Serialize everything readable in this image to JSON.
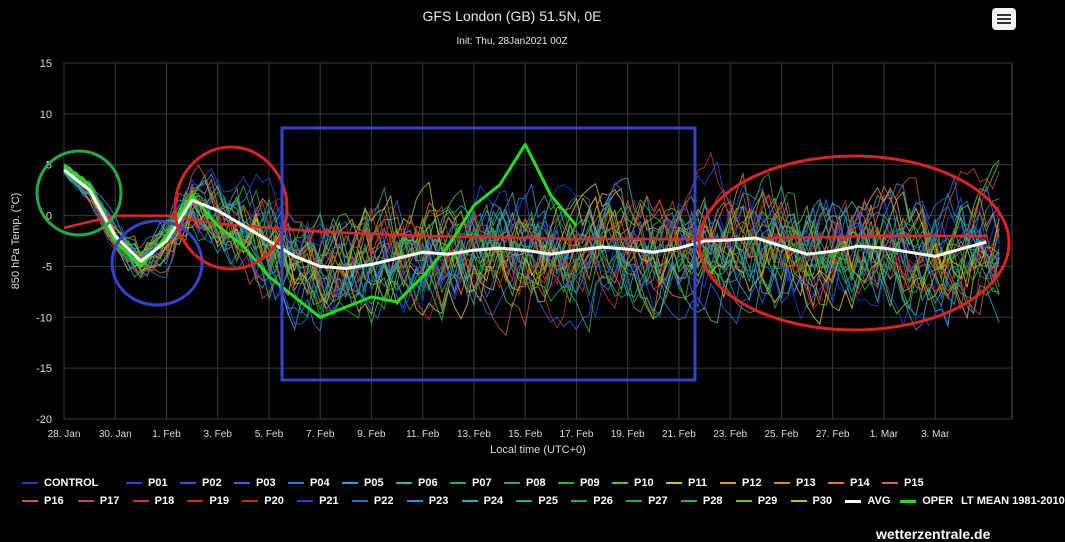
{
  "header": {
    "title": "GFS London (GB) 51.5N, 0E",
    "subtitle": "Init: Thu, 28Jan2021 00Z",
    "menu_icon": "hamburger-menu-icon"
  },
  "watermark": "wetterzentrale.de",
  "chart_data": {
    "type": "line",
    "ylabel": "850 hPa Temp. (°C)",
    "xlabel": "Local time (UTC+0)",
    "ylim": [
      -20,
      15
    ],
    "yticks": [
      15,
      10,
      5,
      0,
      -5,
      -10,
      -15,
      -20
    ],
    "x_range": [
      "2021-01-28",
      "2021-03-05"
    ],
    "xticks": [
      "28. Jan",
      "30. Jan",
      "1. Feb",
      "3. Feb",
      "5. Feb",
      "7. Feb",
      "9. Feb",
      "11. Feb",
      "13. Feb",
      "15. Feb",
      "17. Feb",
      "19. Feb",
      "21. Feb",
      "23. Feb",
      "25. Feb",
      "27. Feb",
      "1. Mar",
      "3. Mar"
    ],
    "grid": true,
    "legend_position": "bottom",
    "series": [
      {
        "name": "CONTROL",
        "color": "#1e3cc8"
      },
      {
        "name": "P01",
        "color": "#2048d8"
      },
      {
        "name": "P02",
        "color": "#2a5ae0"
      },
      {
        "name": "P03",
        "color": "#3068e8"
      },
      {
        "name": "P04",
        "color": "#2f7ae8"
      },
      {
        "name": "P05",
        "color": "#2aa0e0"
      },
      {
        "name": "P06",
        "color": "#22b8b0"
      },
      {
        "name": "P07",
        "color": "#20b070"
      },
      {
        "name": "P08",
        "color": "#28b040"
      },
      {
        "name": "P09",
        "color": "#30b830"
      },
      {
        "name": "P10",
        "color": "#60c020"
      },
      {
        "name": "P11",
        "color": "#d8c020"
      },
      {
        "name": "P12",
        "color": "#e0a020"
      },
      {
        "name": "P13",
        "color": "#e08a20"
      },
      {
        "name": "P14",
        "color": "#e07830"
      },
      {
        "name": "P15",
        "color": "#d86838"
      },
      {
        "name": "P16",
        "color": "#c85a40"
      },
      {
        "name": "P17",
        "color": "#c84a38"
      },
      {
        "name": "P18",
        "color": "#c83c30"
      },
      {
        "name": "P19",
        "color": "#c83028"
      },
      {
        "name": "P20",
        "color": "#d02820"
      },
      {
        "name": "P21",
        "color": "#2048d8"
      },
      {
        "name": "P22",
        "color": "#2a70d8"
      },
      {
        "name": "P23",
        "color": "#2a90d0"
      },
      {
        "name": "P24",
        "color": "#28a8c8"
      },
      {
        "name": "P25",
        "color": "#20b090"
      },
      {
        "name": "P26",
        "color": "#20a868"
      },
      {
        "name": "P27",
        "color": "#28a848"
      },
      {
        "name": "P28",
        "color": "#38b030"
      },
      {
        "name": "P29",
        "color": "#80c020"
      },
      {
        "name": "P30",
        "color": "#c0c020"
      },
      {
        "name": "AVG",
        "color": "#ffffff",
        "values": [
          [
            0,
            4.5
          ],
          [
            1,
            2.5
          ],
          [
            2,
            -2
          ],
          [
            3,
            -4.5
          ],
          [
            4,
            -2.5
          ],
          [
            5,
            1.5
          ],
          [
            6,
            0.5
          ],
          [
            7,
            -1
          ],
          [
            8,
            -2.5
          ],
          [
            9,
            -4
          ],
          [
            10,
            -5
          ],
          [
            11,
            -5.2
          ],
          [
            12,
            -4.8
          ],
          [
            13,
            -4.2
          ],
          [
            14,
            -3.6
          ],
          [
            15,
            -3.8
          ],
          [
            16,
            -3.4
          ],
          [
            17,
            -3.2
          ],
          [
            18,
            -3.4
          ],
          [
            19,
            -3.8
          ],
          [
            20,
            -3.4
          ],
          [
            21,
            -3.1
          ],
          [
            22,
            -3.3
          ],
          [
            23,
            -3.6
          ],
          [
            24,
            -3.2
          ],
          [
            25,
            -2.5
          ],
          [
            26,
            -2.4
          ],
          [
            27,
            -2.2
          ],
          [
            28,
            -3
          ],
          [
            29,
            -3.8
          ],
          [
            30,
            -3.5
          ],
          [
            31,
            -3
          ],
          [
            32,
            -3.2
          ],
          [
            33,
            -3.6
          ],
          [
            34,
            -4
          ],
          [
            35,
            -3.3
          ],
          [
            36,
            -2.6
          ]
        ]
      },
      {
        "name": "OPER",
        "color": "#22dd22",
        "values": [
          [
            0,
            5
          ],
          [
            1,
            3
          ],
          [
            2,
            -2.5
          ],
          [
            3,
            -5
          ],
          [
            4,
            -2
          ],
          [
            5,
            2
          ],
          [
            6,
            -1
          ],
          [
            7,
            -3
          ],
          [
            8,
            -6
          ],
          [
            9,
            -8
          ],
          [
            10,
            -10
          ],
          [
            11,
            -9
          ],
          [
            12,
            -8
          ],
          [
            13,
            -8.5
          ],
          [
            14,
            -6
          ],
          [
            15,
            -3
          ],
          [
            16,
            1
          ],
          [
            17,
            3
          ],
          [
            18,
            7
          ],
          [
            19,
            2
          ],
          [
            20,
            -1
          ]
        ]
      },
      {
        "name": "LT MEAN 1981-2010",
        "color": "#e0282a",
        "values": [
          [
            0,
            -1.2
          ],
          [
            2,
            0
          ],
          [
            4,
            0
          ],
          [
            6,
            -0.8
          ],
          [
            8,
            -1.2
          ],
          [
            10,
            -1.6
          ],
          [
            12,
            -1.8
          ],
          [
            14,
            -2
          ],
          [
            16,
            -2.1
          ],
          [
            18,
            -2.2
          ],
          [
            20,
            -2.3
          ],
          [
            22,
            -2.3
          ],
          [
            24,
            -2.3
          ],
          [
            26,
            -2.3
          ],
          [
            28,
            -2.2
          ],
          [
            30,
            -2.1
          ],
          [
            32,
            -2
          ],
          [
            34,
            -2
          ],
          [
            36,
            -2
          ]
        ]
      }
    ],
    "annotations": [
      {
        "shape": "ellipse",
        "color": "#22aa44",
        "around": "28. Jan"
      },
      {
        "shape": "ellipse",
        "color": "#3344cc",
        "around": "31. Jan"
      },
      {
        "shape": "ellipse",
        "color": "#dd2222",
        "around": "2. Feb"
      },
      {
        "shape": "rectangle",
        "color": "#3344cc",
        "from": "5. Feb",
        "to": "20. Feb"
      },
      {
        "shape": "ellipse",
        "color": "#dd2222",
        "from": "20. Feb",
        "to": "4. Mar"
      }
    ]
  }
}
